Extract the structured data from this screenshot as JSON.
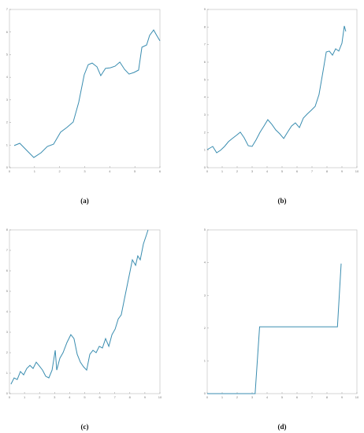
{
  "chart_data": [
    {
      "type": "line",
      "caption": "(a)",
      "color": "#3a8db0",
      "xlim": [
        0,
        6
      ],
      "xticks": [
        0,
        1,
        2,
        3,
        4,
        5,
        6
      ],
      "ylim": [
        0,
        7
      ],
      "yticks": [
        0,
        1,
        2,
        3,
        4,
        5,
        6,
        7
      ],
      "x": [
        0.19,
        0.41,
        0.72,
        0.97,
        1.26,
        1.51,
        1.76,
        2.04,
        2.29,
        2.54,
        2.76,
        2.98,
        3.14,
        3.3,
        3.49,
        3.64,
        3.83,
        4.02,
        4.21,
        4.4,
        4.59,
        4.77,
        4.96,
        5.15,
        5.28,
        5.47,
        5.59,
        5.75,
        5.87,
        6.0
      ],
      "values": [
        0.98,
        1.08,
        0.73,
        0.45,
        0.66,
        0.94,
        1.04,
        1.57,
        1.78,
        2.02,
        2.89,
        4.11,
        4.56,
        4.63,
        4.46,
        4.07,
        4.39,
        4.42,
        4.49,
        4.67,
        4.35,
        4.14,
        4.21,
        4.32,
        5.33,
        5.43,
        5.85,
        6.09,
        5.85,
        5.61
      ]
    },
    {
      "type": "line",
      "caption": "(b)",
      "color": "#3a8db0",
      "xlim": [
        0,
        10
      ],
      "xticks": [
        0,
        1,
        2,
        3,
        4,
        5,
        6,
        7,
        8,
        9,
        10
      ],
      "ylim": [
        0,
        9
      ],
      "yticks": [
        0,
        1,
        2,
        3,
        4,
        5,
        6,
        7,
        8,
        9
      ],
      "x": [
        0,
        0.37,
        0.63,
        0.89,
        1.16,
        1.42,
        1.68,
        1.95,
        2.21,
        2.47,
        2.74,
        3.0,
        3.26,
        3.53,
        3.79,
        4.05,
        4.32,
        4.58,
        4.84,
        5.11,
        5.37,
        5.63,
        5.89,
        6.16,
        6.42,
        6.68,
        6.95,
        7.21,
        7.47,
        7.74,
        7.95,
        8.16,
        8.37,
        8.58,
        8.79,
        9.0,
        9.16,
        9.26
      ],
      "values": [
        1.03,
        1.21,
        0.85,
        0.99,
        1.21,
        1.48,
        1.66,
        1.84,
        2.02,
        1.7,
        1.25,
        1.21,
        1.57,
        2.02,
        2.37,
        2.73,
        2.46,
        2.15,
        1.93,
        1.66,
        2.02,
        2.37,
        2.55,
        2.28,
        2.82,
        3.05,
        3.27,
        3.49,
        4.16,
        5.51,
        6.58,
        6.63,
        6.4,
        6.76,
        6.63,
        7.08,
        8.06,
        7.75
      ]
    },
    {
      "type": "line",
      "caption": "(c)",
      "color": "#3a8db0",
      "xlim": [
        0,
        10
      ],
      "xticks": [
        0,
        1,
        2,
        3,
        4,
        5,
        6,
        7,
        8,
        9,
        10
      ],
      "ylim": [
        0,
        8
      ],
      "yticks": [
        0,
        1,
        2,
        3,
        4,
        5,
        6,
        7,
        8
      ],
      "x": [
        0.1,
        0.31,
        0.52,
        0.73,
        0.94,
        1.15,
        1.36,
        1.57,
        1.78,
        1.99,
        2.2,
        2.41,
        2.62,
        2.83,
        3.04,
        3.14,
        3.35,
        3.56,
        3.82,
        4.08,
        4.29,
        4.5,
        4.71,
        4.92,
        5.13,
        5.34,
        5.55,
        5.76,
        5.97,
        6.18,
        6.39,
        6.6,
        6.81,
        7.02,
        7.23,
        7.43,
        7.64,
        7.85,
        8.01,
        8.17,
        8.38,
        8.53,
        8.69,
        8.9,
        9.11,
        9.21
      ],
      "values": [
        0.46,
        0.77,
        0.69,
        1.08,
        0.92,
        1.23,
        1.38,
        1.23,
        1.54,
        1.35,
        1.15,
        0.85,
        0.77,
        1.15,
        2.12,
        1.15,
        1.73,
        2.0,
        2.5,
        2.88,
        2.69,
        1.92,
        1.54,
        1.31,
        1.15,
        1.92,
        2.12,
        2.0,
        2.31,
        2.23,
        2.69,
        2.31,
        2.88,
        3.15,
        3.65,
        3.85,
        4.62,
        5.38,
        5.96,
        6.54,
        6.27,
        6.73,
        6.54,
        7.31,
        7.77,
        8.0
      ]
    },
    {
      "type": "line",
      "caption": "(d)",
      "color": "#3a8db0",
      "xlim": [
        0,
        10
      ],
      "xticks": [
        0,
        1,
        2,
        3,
        4,
        5,
        6,
        7,
        8,
        9,
        10
      ],
      "ylim": [
        0,
        5
      ],
      "yticks": [
        0,
        1,
        2,
        3,
        4,
        5
      ],
      "x": [
        0,
        3.2,
        3.5,
        8.7,
        8.95
      ],
      "values": [
        0,
        0,
        2.04,
        2.04,
        3.97
      ]
    }
  ]
}
